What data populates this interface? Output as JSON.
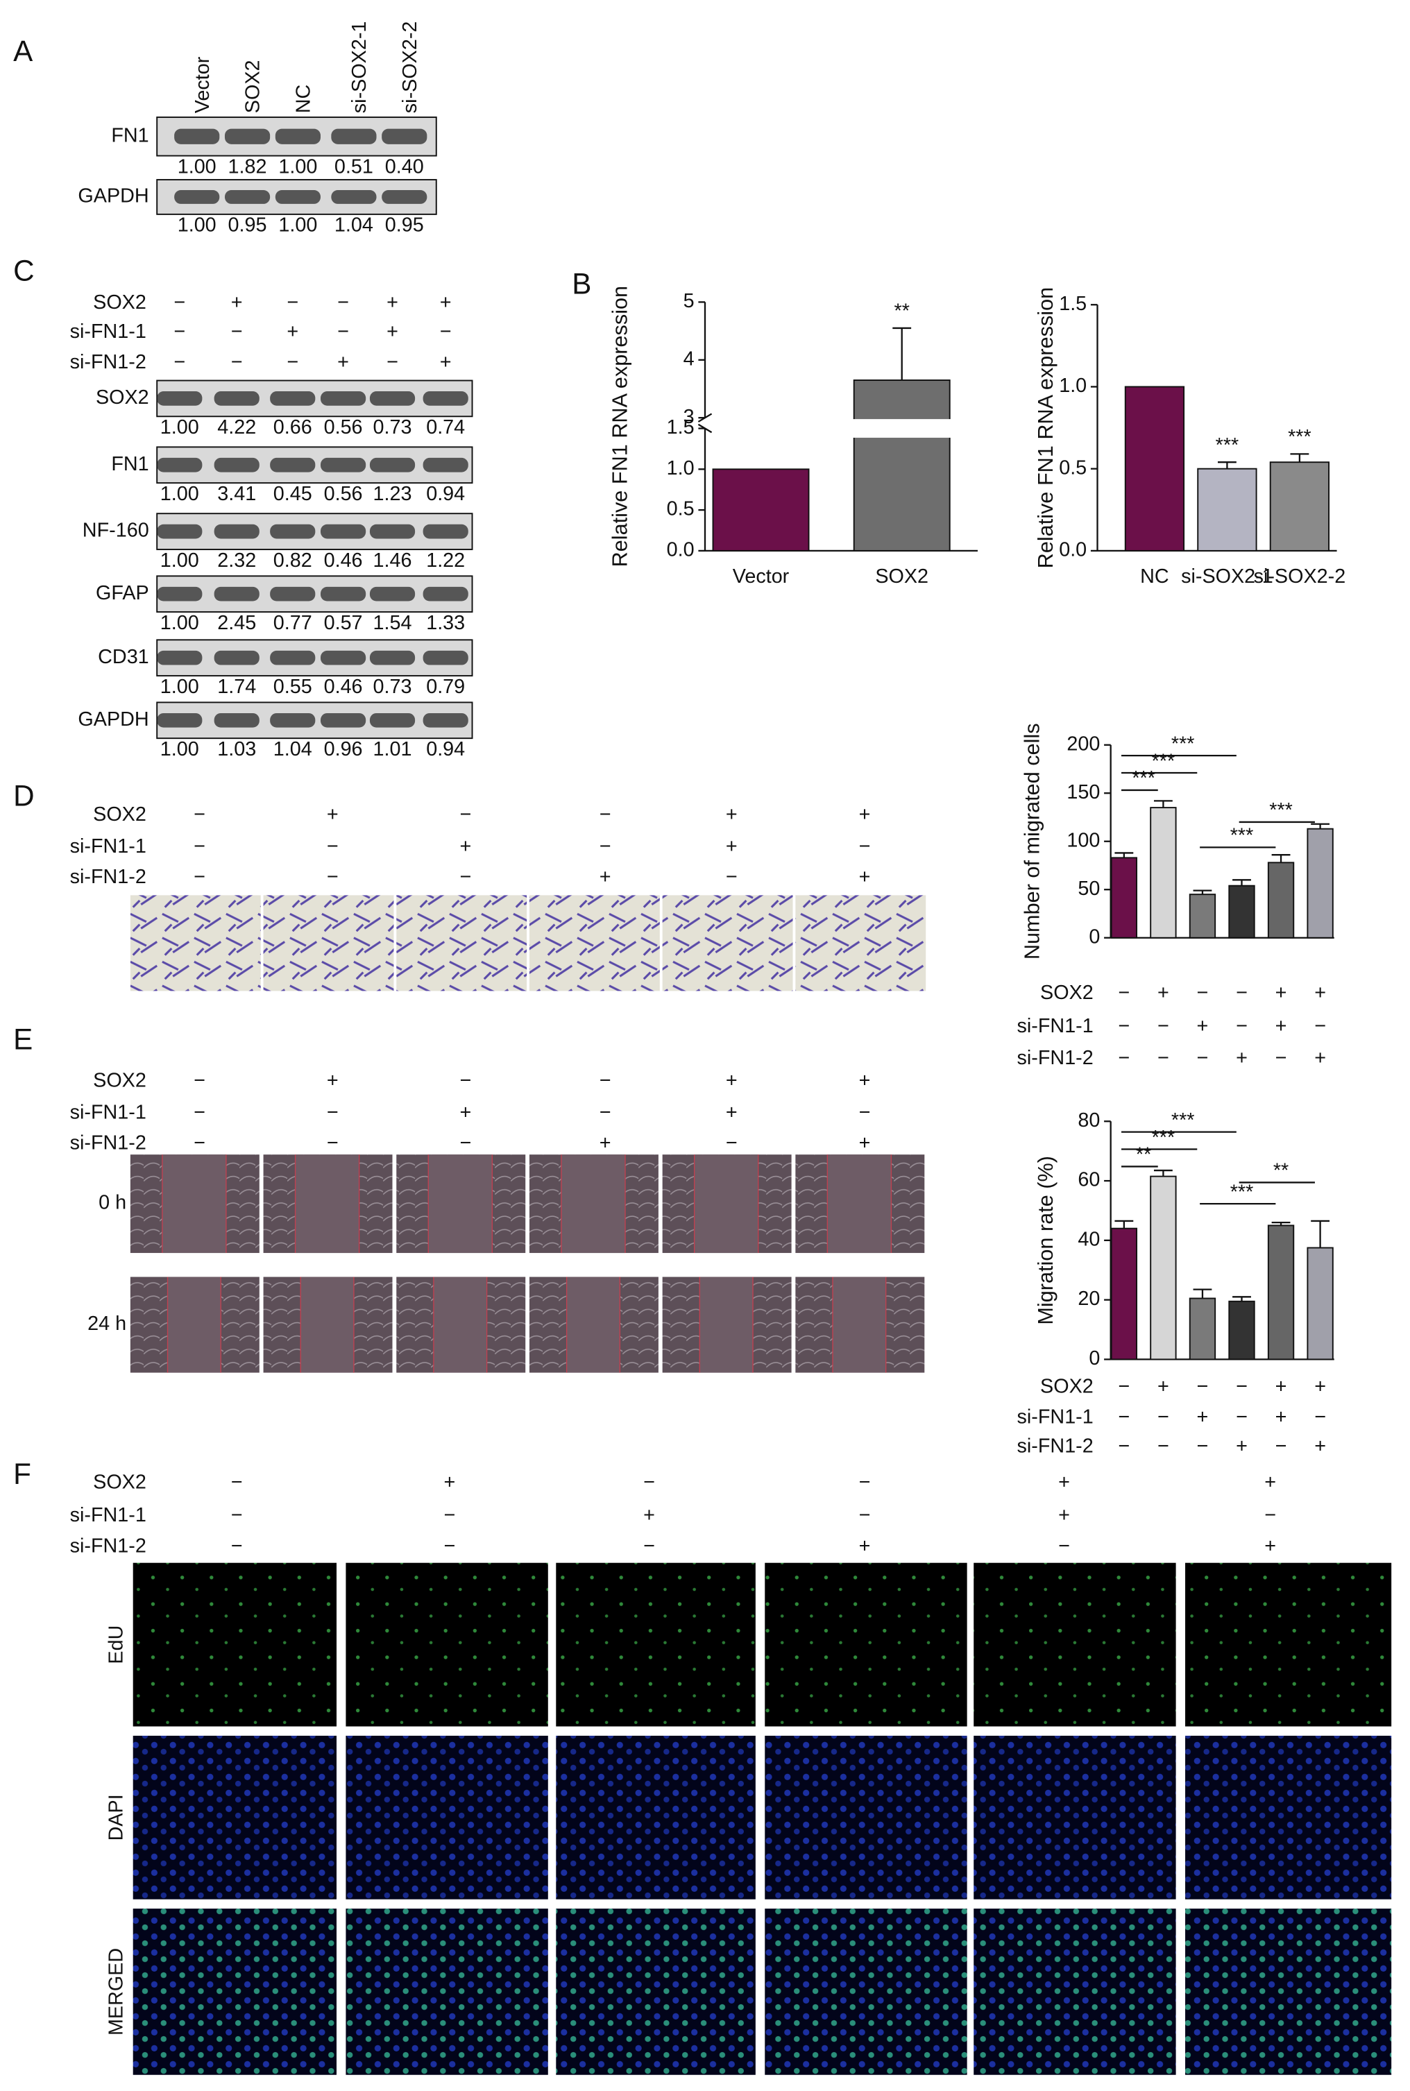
{
  "panel_labels": [
    "A",
    "B",
    "C",
    "D",
    "E",
    "F"
  ],
  "conditions": [
    {
      "name": "SOX2",
      "signs": [
        "−",
        "+",
        "−",
        "−",
        "+",
        "+"
      ]
    },
    {
      "name": "si-FN1-1",
      "signs": [
        "−",
        "−",
        "+",
        "−",
        "+",
        "−"
      ]
    },
    {
      "name": "si-FN1-2",
      "signs": [
        "−",
        "−",
        "−",
        "+",
        "−",
        "+"
      ]
    }
  ],
  "panel_a": {
    "lanes": [
      "Vector",
      "SOX2",
      "NC",
      "si-SOX2-1",
      "si-SOX2-2"
    ],
    "blots": [
      {
        "name": "FN1",
        "values": [
          "1.00",
          "1.82",
          "1.00",
          "0.51",
          "0.40"
        ]
      },
      {
        "name": "GAPDH",
        "values": [
          "1.00",
          "0.95",
          "1.00",
          "1.04",
          "0.95"
        ]
      }
    ]
  },
  "panel_c": {
    "blots": [
      {
        "name": "SOX2",
        "values": [
          "1.00",
          "4.22",
          "0.66",
          "0.56",
          "0.73",
          "0.74"
        ]
      },
      {
        "name": "FN1",
        "values": [
          "1.00",
          "3.41",
          "0.45",
          "0.56",
          "1.23",
          "0.94"
        ]
      },
      {
        "name": "NF-160",
        "values": [
          "1.00",
          "2.32",
          "0.82",
          "0.46",
          "1.46",
          "1.22"
        ]
      },
      {
        "name": "GFAP",
        "values": [
          "1.00",
          "2.45",
          "0.77",
          "0.57",
          "1.54",
          "1.33"
        ]
      },
      {
        "name": "CD31",
        "values": [
          "1.00",
          "1.74",
          "0.55",
          "0.46",
          "0.73",
          "0.79"
        ]
      },
      {
        "name": "GAPDH",
        "values": [
          "1.00",
          "1.03",
          "1.04",
          "0.96",
          "1.01",
          "0.94"
        ]
      }
    ]
  },
  "panel_e": {
    "times": [
      "0 h",
      "24 h"
    ]
  },
  "panel_f": {
    "stains": [
      "EdU",
      "DAPI",
      "MERGED"
    ]
  },
  "chart_data": [
    {
      "type": "bar",
      "y_label": "Relative FN1 RNA expression",
      "categories": [
        "Vector",
        "SOX2"
      ],
      "values": [
        1.0,
        3.65
      ],
      "errors": [
        null,
        0.9
      ],
      "colors": [
        "#6b1049",
        "#6e6e6e"
      ],
      "annotations": [
        null,
        "**"
      ],
      "ylim": [
        0,
        5
      ],
      "axis_break": [
        1.5,
        3
      ],
      "yticks": [
        {
          "value": 0,
          "label": "0.0"
        },
        {
          "value": 0.5,
          "label": "0.5"
        },
        {
          "value": 1,
          "label": "1.0"
        },
        {
          "value": 1.5,
          "label": "1.5"
        },
        3,
        4,
        5
      ]
    },
    {
      "type": "bar",
      "y_label": "Relative FN1 RNA expression",
      "categories": [
        "NC",
        "si-SOX2-1",
        "si-SOX2-2"
      ],
      "values": [
        1.0,
        0.5,
        0.54
      ],
      "errors": [
        null,
        0.04,
        0.05
      ],
      "colors": [
        "#6b1049",
        "#b4b4c2",
        "#8a8a8a"
      ],
      "annotations": [
        null,
        "***",
        "***"
      ],
      "ylim": [
        0,
        1.5
      ],
      "yticks": [
        {
          "value": 0,
          "label": "0.0"
        },
        {
          "value": 0.5,
          "label": "0.5"
        },
        {
          "value": 1,
          "label": "1.0"
        },
        {
          "value": 1.5,
          "label": "1.5"
        }
      ]
    },
    {
      "type": "bar",
      "y_label": "Number of migrated cells",
      "values": [
        83,
        135,
        45,
        54,
        78,
        113
      ],
      "errors": [
        5,
        7,
        4,
        6,
        8,
        5
      ],
      "colors": [
        "#6b1049",
        "#d6d6d6",
        "#7a7a7a",
        "#333333",
        "#666666",
        "#a0a0aa"
      ],
      "ylim": [
        0,
        200
      ],
      "yticks": [
        0,
        50,
        100,
        150,
        200
      ],
      "brackets": [
        {
          "from": 0,
          "to": 3,
          "label": "***"
        },
        {
          "from": 0,
          "to": 2,
          "label": "***"
        },
        {
          "from": 0,
          "to": 1,
          "label": "***"
        },
        {
          "from": 3,
          "to": 5,
          "label": "***"
        },
        {
          "from": 2,
          "to": 4,
          "label": "***"
        }
      ]
    },
    {
      "type": "bar",
      "y_label": "Migration rate (%)",
      "values": [
        44,
        61.5,
        20.5,
        19.5,
        45,
        37.5
      ],
      "errors": [
        2.5,
        2,
        3,
        1.5,
        1,
        9
      ],
      "colors": [
        "#6b1049",
        "#d6d6d6",
        "#7a7a7a",
        "#333333",
        "#666666",
        "#a0a0aa"
      ],
      "ylim": [
        0,
        80
      ],
      "yticks": [
        0,
        20,
        40,
        60,
        80
      ],
      "brackets": [
        {
          "from": 0,
          "to": 3,
          "label": "***"
        },
        {
          "from": 0,
          "to": 2,
          "label": "***"
        },
        {
          "from": 0,
          "to": 1,
          "label": "**"
        },
        {
          "from": 3,
          "to": 5,
          "label": "**"
        },
        {
          "from": 2,
          "to": 4,
          "label": "***"
        }
      ]
    }
  ]
}
